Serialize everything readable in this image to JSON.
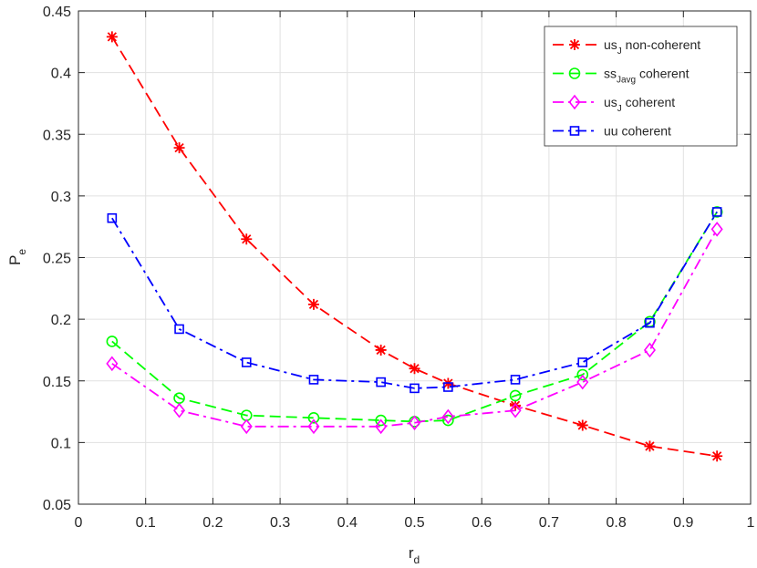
{
  "chart_data": {
    "type": "line",
    "xlabel": "r",
    "xlabel_sub": "d",
    "ylabel": "P",
    "ylabel_sub": "e",
    "xlim": [
      0,
      1
    ],
    "ylim": [
      0.05,
      0.45
    ],
    "xticks": [
      "0",
      "0.1",
      "0.2",
      "0.3",
      "0.4",
      "0.5",
      "0.6",
      "0.7",
      "0.8",
      "0.9",
      "1"
    ],
    "yticks": [
      "0.05",
      "0.1",
      "0.15",
      "0.2",
      "0.25",
      "0.3",
      "0.35",
      "0.4",
      "0.45"
    ],
    "grid": true,
    "legend_position": "top-right",
    "series": [
      {
        "name": "us_J non-coherent",
        "name_base": "us",
        "name_sub": "J",
        "name_rest": " non-coherent",
        "color": "#ff0000",
        "marker": "asterisk",
        "linestyle": "dashed",
        "x": [
          0.05,
          0.15,
          0.25,
          0.35,
          0.45,
          0.5,
          0.55,
          0.65,
          0.75,
          0.85,
          0.95
        ],
        "y": [
          0.429,
          0.339,
          0.265,
          0.212,
          0.175,
          0.16,
          0.148,
          0.13,
          0.114,
          0.097,
          0.089
        ]
      },
      {
        "name": "ss_Javg coherent",
        "name_base": "ss",
        "name_sub": "Javg",
        "name_rest": " coherent",
        "color": "#00ff00",
        "marker": "circle",
        "linestyle": "dashed",
        "x": [
          0.05,
          0.15,
          0.25,
          0.35,
          0.45,
          0.5,
          0.55,
          0.65,
          0.75,
          0.85,
          0.95
        ],
        "y": [
          0.182,
          0.136,
          0.122,
          0.12,
          0.118,
          0.117,
          0.118,
          0.138,
          0.155,
          0.198,
          0.287
        ]
      },
      {
        "name": "us_J coherent",
        "name_base": "us",
        "name_sub": "J",
        "name_rest": " coherent",
        "color": "#ff00ff",
        "marker": "diamond",
        "linestyle": "dashdot",
        "x": [
          0.05,
          0.15,
          0.25,
          0.35,
          0.45,
          0.5,
          0.55,
          0.65,
          0.75,
          0.85,
          0.95
        ],
        "y": [
          0.164,
          0.126,
          0.113,
          0.113,
          0.113,
          0.116,
          0.121,
          0.126,
          0.149,
          0.175,
          0.273
        ]
      },
      {
        "name": "uu coherent",
        "name_base": "uu coherent",
        "name_sub": "",
        "name_rest": "",
        "color": "#0000ff",
        "marker": "square",
        "linestyle": "dashdot",
        "x": [
          0.05,
          0.15,
          0.25,
          0.35,
          0.45,
          0.5,
          0.55,
          0.65,
          0.75,
          0.85,
          0.95
        ],
        "y": [
          0.282,
          0.192,
          0.165,
          0.151,
          0.149,
          0.144,
          0.145,
          0.151,
          0.165,
          0.197,
          0.287
        ]
      }
    ]
  }
}
